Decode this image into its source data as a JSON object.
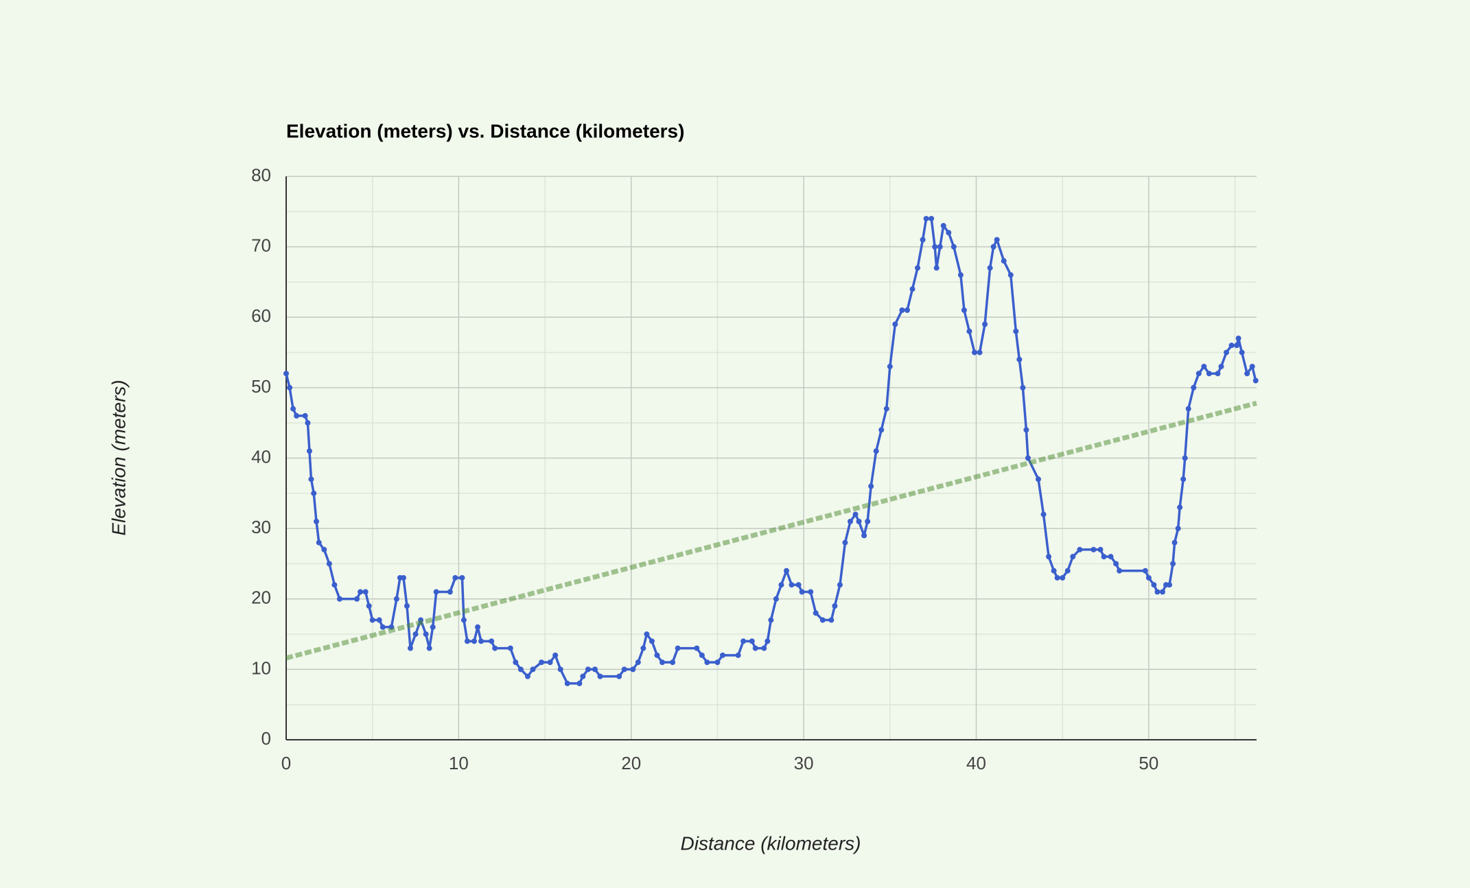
{
  "chart_data": {
    "type": "line",
    "title": "Elevation (meters) vs. Distance (kilometers)",
    "x_label": "Distance (kilometers)",
    "y_label": "Elevation (meters)",
    "xlim": [
      0,
      56.25
    ],
    "ylim": [
      0,
      80
    ],
    "xticks": [
      0,
      10,
      20,
      30,
      40,
      50
    ],
    "yticks": [
      0,
      10,
      20,
      30,
      40,
      50,
      60,
      70,
      80
    ],
    "grid": true,
    "minor_grid": true,
    "markers": true,
    "series": [
      {
        "color": "#3a5fcd",
        "x": [
          0,
          0.2,
          0.4,
          0.6,
          1.1,
          1.25,
          1.35,
          1.45,
          1.6,
          1.75,
          1.9,
          2.2,
          2.5,
          2.8,
          3.1,
          4.1,
          4.3,
          4.6,
          4.8,
          5.0,
          5.4,
          5.6,
          6.1,
          6.4,
          6.6,
          6.8,
          7.0,
          7.2,
          7.5,
          7.8,
          8.1,
          8.3,
          8.5,
          8.7,
          9.5,
          9.8,
          10.2,
          10.3,
          10.5,
          10.9,
          11.1,
          11.3,
          11.9,
          12.1,
          13.0,
          13.3,
          13.6,
          14.0,
          14.3,
          14.8,
          15.3,
          15.6,
          15.9,
          16.3,
          17.0,
          17.2,
          17.5,
          17.9,
          18.2,
          19.3,
          19.6,
          20.1,
          20.4,
          20.7,
          20.9,
          21.2,
          21.5,
          21.8,
          22.4,
          22.7,
          23.8,
          24.1,
          24.4,
          25.0,
          25.3,
          26.2,
          26.5,
          27.0,
          27.2,
          27.7,
          27.9,
          28.1,
          28.4,
          28.7,
          29.0,
          29.3,
          29.7,
          29.9,
          30.4,
          30.7,
          31.1,
          31.6,
          31.8,
          32.1,
          32.4,
          32.7,
          33.0,
          33.2,
          33.5,
          33.7,
          33.9,
          34.2,
          34.5,
          34.8,
          35.0,
          35.3,
          35.7,
          36.0,
          36.3,
          36.6,
          36.9,
          37.1,
          37.4,
          37.6,
          37.7,
          37.9,
          38.1,
          38.4,
          38.7,
          39.1,
          39.3,
          39.6,
          39.9,
          40.2,
          40.5,
          40.8,
          41.0,
          41.2,
          41.6,
          42.0,
          42.3,
          42.5,
          42.7,
          42.9,
          43.0,
          43.6,
          43.9,
          44.2,
          44.5,
          44.7,
          45.0,
          45.3,
          45.6,
          46.0,
          46.8,
          47.2,
          47.4,
          47.8,
          48.1,
          48.3,
          49.8,
          50.0,
          50.3,
          50.5,
          50.8,
          51.0,
          51.2,
          51.4,
          51.5,
          51.7,
          51.8,
          52.0,
          52.1,
          52.3,
          52.6,
          52.9,
          53.2,
          53.5,
          54.0,
          54.2,
          54.5,
          54.8,
          55.1,
          55.2,
          55.4,
          55.7,
          56.0,
          56.2
        ],
        "values": [
          52,
          50,
          47,
          46,
          46,
          45,
          41,
          37,
          35,
          31,
          28,
          27,
          25,
          22,
          20,
          20,
          21,
          21,
          19,
          17,
          17,
          16,
          16,
          20,
          23,
          23,
          19,
          13,
          15,
          17,
          15,
          13,
          16,
          21,
          21,
          23,
          23,
          17,
          14,
          14,
          16,
          14,
          14,
          13,
          13,
          11,
          10,
          9,
          10,
          11,
          11,
          12,
          10,
          8,
          8,
          9,
          10,
          10,
          9,
          9,
          10,
          10,
          11,
          13,
          15,
          14,
          12,
          11,
          11,
          13,
          13,
          12,
          11,
          11,
          12,
          12,
          14,
          14,
          13,
          13,
          14,
          17,
          20,
          22,
          24,
          22,
          22,
          21,
          21,
          18,
          17,
          17,
          19,
          22,
          28,
          31,
          32,
          31,
          29,
          31,
          36,
          41,
          44,
          47,
          53,
          59,
          61,
          61,
          64,
          67,
          71,
          74,
          74,
          70,
          67,
          70,
          73,
          72,
          70,
          66,
          61,
          58,
          55,
          55,
          59,
          67,
          70,
          71,
          68,
          66,
          58,
          54,
          50,
          44,
          40,
          37,
          32,
          26,
          24,
          23,
          23,
          24,
          26,
          27,
          27,
          27,
          26,
          26,
          25,
          24,
          24,
          23,
          22,
          21,
          21,
          22,
          22,
          25,
          28,
          30,
          33,
          37,
          40,
          47,
          50,
          52,
          53,
          52,
          52,
          53,
          55,
          56,
          56,
          57,
          55,
          52,
          53,
          51
        ]
      },
      {
        "color": "#4c8a2e",
        "style": "trendline",
        "x": [
          0,
          56.25
        ],
        "values": [
          11.6,
          47.8
        ]
      }
    ]
  }
}
